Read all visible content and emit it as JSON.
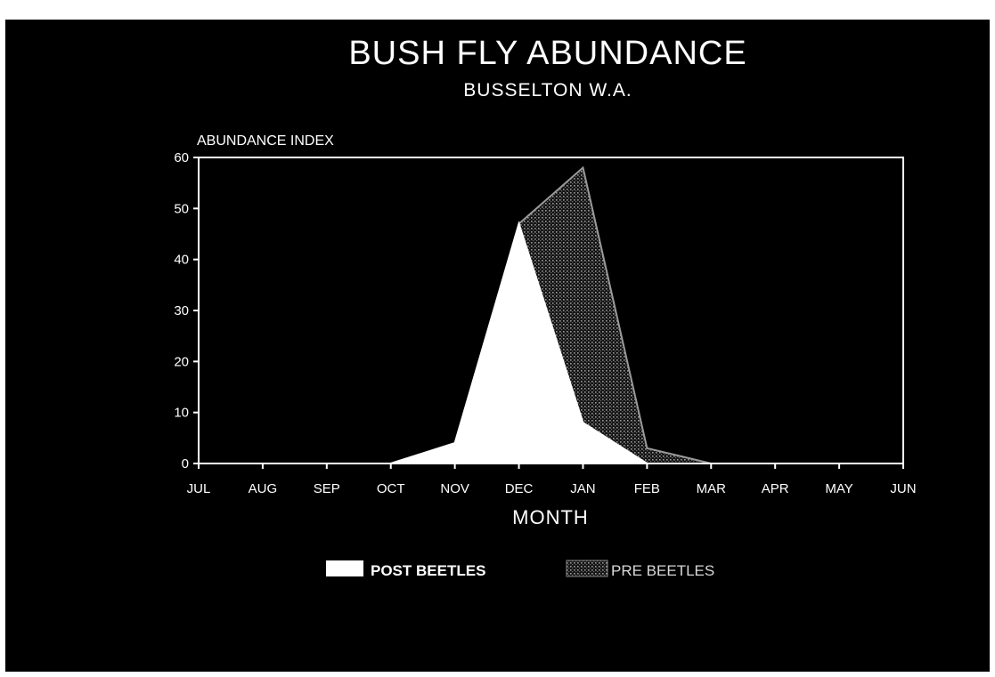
{
  "chart_data": {
    "type": "area",
    "title": "BUSH FLY ABUNDANCE",
    "subtitle": "BUSSELTON W.A.",
    "xlabel": "MONTH",
    "ylabel": "ABUNDANCE INDEX",
    "categories": [
      "JUL",
      "AUG",
      "SEP",
      "OCT",
      "NOV",
      "DEC",
      "JAN",
      "FEB",
      "MAR",
      "APR",
      "MAY",
      "JUN"
    ],
    "yticks": [
      0,
      10,
      20,
      30,
      40,
      50,
      60
    ],
    "ylim": [
      0,
      60
    ],
    "grid": false,
    "legend_position": "bottom",
    "series": [
      {
        "name": "PRE BEETLES",
        "values": [
          0,
          0,
          0,
          0,
          4,
          47,
          58,
          3,
          0,
          0,
          0,
          0
        ],
        "style": "dotted-gray",
        "color": "#9a9a9a"
      },
      {
        "name": "POST BEETLES",
        "values": [
          0,
          0,
          0,
          0,
          4,
          47,
          8,
          0,
          0,
          0,
          0,
          0
        ],
        "style": "solid-white",
        "color": "#ffffff"
      }
    ]
  },
  "colors": {
    "background": "#000000",
    "foreground": "#ffffff"
  }
}
